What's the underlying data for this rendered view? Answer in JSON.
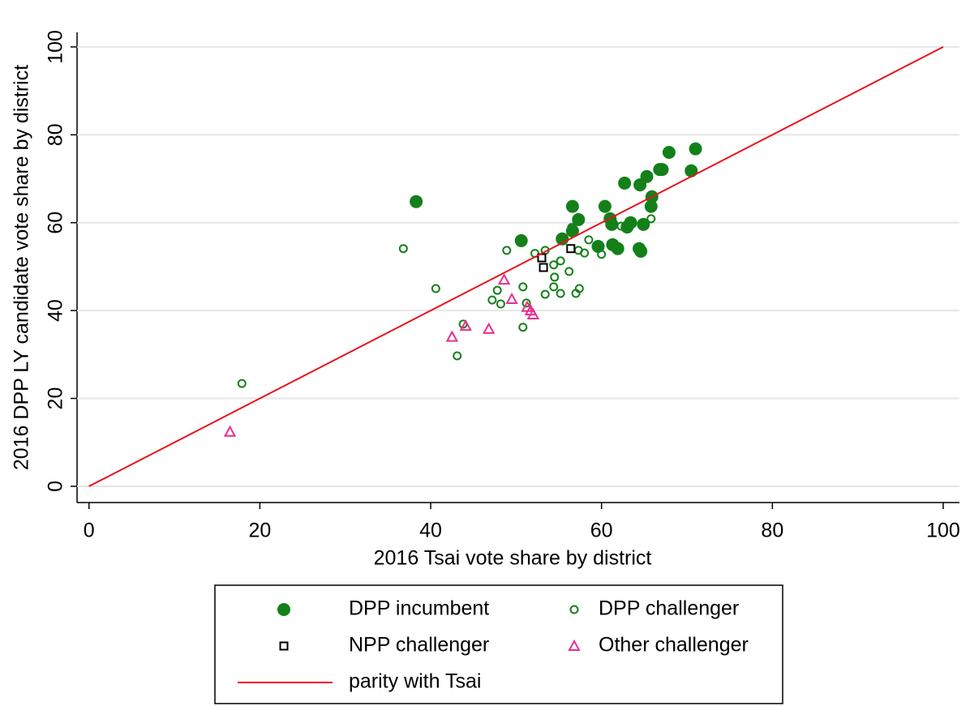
{
  "chart_data": {
    "type": "scatter",
    "xlabel": "2016 Tsai vote share by district",
    "ylabel": "2016 DPP LY candidate vote share by district",
    "xlim": [
      -1.4,
      101.9
    ],
    "ylim": [
      -3.7,
      103.3
    ],
    "xticks": [
      0,
      20,
      40,
      60,
      80,
      100
    ],
    "yticks": [
      0,
      20,
      40,
      60,
      80,
      100
    ],
    "grid": true,
    "legend": "bottom",
    "series": [
      {
        "name": "DPP incumbent",
        "color": "#13801a",
        "marker": "filled-circle",
        "x": [
          38.3,
          50.6,
          56.6,
          57.3,
          56.6,
          55.4,
          59.6,
          60.4,
          61.0,
          61.2,
          61.3,
          61.9,
          62.7,
          63.0,
          63.4,
          64.5,
          65.3,
          64.4,
          64.6,
          64.9,
          65.9,
          65.8,
          66.8,
          67.1,
          67.9,
          70.5,
          71.0
        ],
        "values": [
          64.8,
          55.9,
          63.7,
          60.7,
          58.1,
          56.3,
          54.6,
          63.7,
          60.9,
          59.6,
          55.0,
          54.1,
          69.0,
          59.0,
          60.0,
          68.6,
          70.5,
          54.1,
          53.5,
          59.6,
          65.9,
          63.7,
          72.1,
          72.1,
          76.0,
          71.8,
          76.8
        ]
      },
      {
        "name": "DPP challenger",
        "color": "#13801a",
        "marker": "hollow-circle",
        "x": [
          17.9,
          36.8,
          40.6,
          43.1,
          43.8,
          47.2,
          47.8,
          48.2,
          48.9,
          50.8,
          51.2,
          50.8,
          52.2,
          53.4,
          53.4,
          54.4,
          54.5,
          54.4,
          55.2,
          55.2,
          56.2,
          56.5,
          57.0,
          57.4,
          57.3,
          58.0,
          58.5,
          60.0,
          62.3,
          65.8
        ],
        "values": [
          23.4,
          54.1,
          45.0,
          29.7,
          36.9,
          42.4,
          44.6,
          41.5,
          53.7,
          45.4,
          41.7,
          36.2,
          53.0,
          53.7,
          43.7,
          50.4,
          47.6,
          45.4,
          51.3,
          43.9,
          48.9,
          58.9,
          43.9,
          45.0,
          53.7,
          53.1,
          56.1,
          52.8,
          59.2,
          60.9
        ]
      },
      {
        "name": "NPP challenger",
        "color": "#000000",
        "marker": "hollow-square",
        "x": [
          53.0,
          53.2,
          56.4
        ],
        "values": [
          52.0,
          49.8,
          54.1
        ]
      },
      {
        "name": "Other challenger",
        "color": "#e8308f",
        "marker": "hollow-triangle",
        "x": [
          16.5,
          42.5,
          44.1,
          46.8,
          48.6,
          49.5,
          51.3,
          51.7,
          52.0
        ],
        "values": [
          12.4,
          34.0,
          36.5,
          35.8,
          47.0,
          42.6,
          40.8,
          40.0,
          39.1
        ]
      },
      {
        "name": "parity with Tsai",
        "color": "#e8141c",
        "marker": "line",
        "x": [
          0,
          100
        ],
        "values": [
          0,
          100
        ]
      }
    ]
  }
}
